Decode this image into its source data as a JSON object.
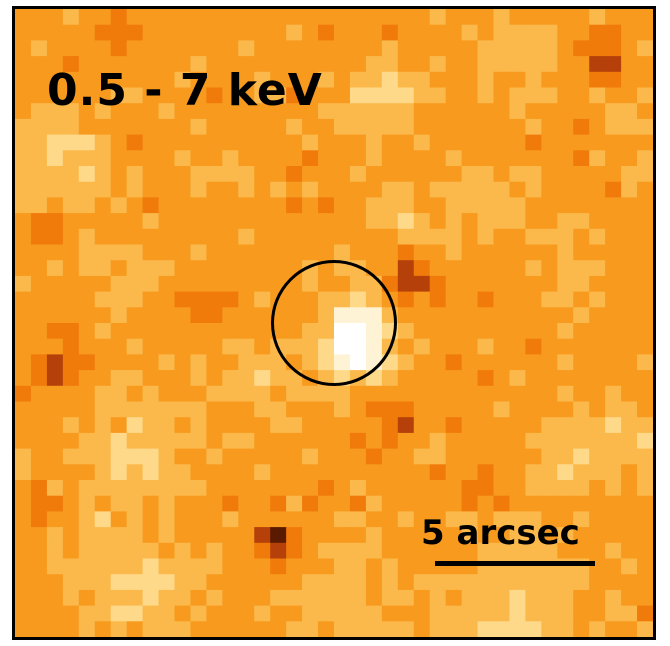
{
  "image": {
    "band_label": "0.5 - 7 keV",
    "scale_label": "5 arcsec",
    "colormap": [
      "#000000",
      "#5a1a00",
      "#b5400a",
      "#f07a0a",
      "#f79a1e",
      "#fbb94c",
      "#ffd98a",
      "#fff3d6",
      "#ffffff"
    ]
  }
}
